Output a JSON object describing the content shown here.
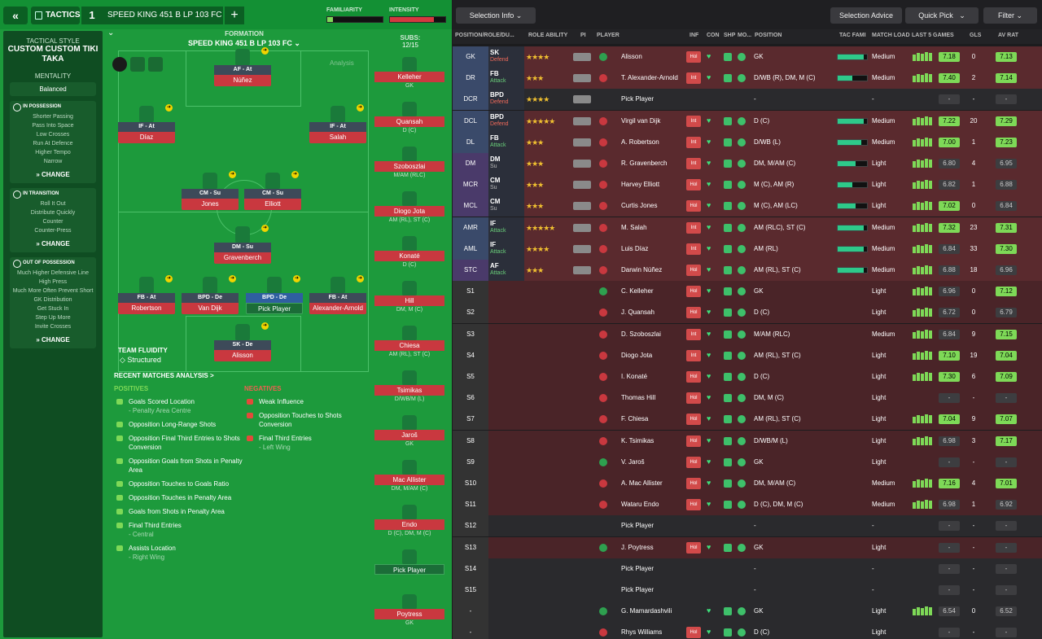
{
  "topbar": {
    "back": "«",
    "tactics": "TACTICS",
    "num": "1",
    "tactic_name": "SPEED KING 451 B LP 103 FC",
    "plus": "+",
    "familiarity": "FAMILIARITY",
    "intensity": "INTENSITY"
  },
  "sidebar": {
    "style_label": "TACTICAL STYLE",
    "style_name": "CUSTOM CUSTOM TIKI TAKA",
    "mentality_label": "MENTALITY",
    "mentality": "Balanced",
    "in_possession": {
      "title": "IN POSSESSION",
      "items": [
        "Shorter Passing",
        "Pass Into Space",
        "Low Crosses",
        "Run At Defence",
        "Higher Tempo",
        "Narrow"
      ],
      "change": "CHANGE"
    },
    "in_transition": {
      "title": "IN TRANSITION",
      "items": [
        "Roll It Out",
        "Distribute Quickly",
        "Counter",
        "Counter-Press"
      ],
      "change": "CHANGE"
    },
    "out_possession": {
      "title": "OUT OF POSSESSION",
      "items": [
        "Much Higher Defensive Line",
        "High Press",
        "Much More Often Prevent Short GK Distribution",
        "Get Stuck In",
        "Step Up More",
        "Invite Crosses"
      ],
      "change": "CHANGE"
    }
  },
  "formation": {
    "label": "FORMATION",
    "name": "SPEED KING 451 B LP 103 FC",
    "analysis": "Analysis",
    "subs_label": "SUBS:",
    "subs_count": "12/15",
    "players": [
      {
        "role": "AF - At",
        "name": "Núñez"
      },
      {
        "role": "IF - At",
        "name": "Díaz"
      },
      {
        "role": "IF - At",
        "name": "Salah"
      },
      {
        "role": "CM - Su",
        "name": "Jones"
      },
      {
        "role": "CM - Su",
        "name": "Elliott"
      },
      {
        "role": "DM - Su",
        "name": "Gravenberch"
      },
      {
        "role": "FB - At",
        "name": "Robertson"
      },
      {
        "role": "BPD - De",
        "name": "Van Dijk"
      },
      {
        "role": "BPD - De",
        "name": "Pick Player"
      },
      {
        "role": "FB - At",
        "name": "Alexander-Arnold"
      },
      {
        "role": "SK - De",
        "name": "Alisson"
      }
    ],
    "fluidity_label": "TEAM FLUIDITY",
    "fluidity": "Structured"
  },
  "subs": [
    {
      "name": "Kelleher",
      "pos": "GK"
    },
    {
      "name": "Quansah",
      "pos": "D (C)"
    },
    {
      "name": "Szoboszlai",
      "pos": "M/AM (RLC)"
    },
    {
      "name": "Diogo Jota",
      "pos": "AM (RL), ST (C)"
    },
    {
      "name": "Konaté",
      "pos": "D (C)"
    },
    {
      "name": "Hill",
      "pos": "DM, M (C)"
    },
    {
      "name": "Chiesa",
      "pos": "AM (RL), ST (C)"
    },
    {
      "name": "Tsimikas",
      "pos": "D/WB/M (L)"
    },
    {
      "name": "Jaroš",
      "pos": "GK"
    },
    {
      "name": "Mac Allister",
      "pos": "DM, M/AM (C)"
    },
    {
      "name": "Endo",
      "pos": "D (C), DM, M (C)"
    },
    {
      "name": "Pick Player",
      "pos": ""
    },
    {
      "name": "Poytress",
      "pos": "GK"
    }
  ],
  "analysis": {
    "title": "RECENT MATCHES ANALYSIS >",
    "positives_label": "POSITIVES",
    "negatives_label": "NEGATIVES",
    "positives": [
      {
        "t": "Goals Scored Location",
        "s": "- Penalty Area Centre"
      },
      {
        "t": "Opposition Long-Range Shots",
        "s": ""
      },
      {
        "t": "Opposition Final Third Entries to Shots Conversion",
        "s": ""
      },
      {
        "t": "Opposition Goals from Shots in Penalty Area",
        "s": ""
      },
      {
        "t": "Opposition Touches to Goals Ratio",
        "s": ""
      },
      {
        "t": "Opposition Touches in Penalty Area",
        "s": ""
      },
      {
        "t": "Goals from Shots in Penalty Area",
        "s": ""
      },
      {
        "t": "Final Third Entries",
        "s": "- Central"
      },
      {
        "t": "Assists Location",
        "s": "- Right Wing"
      }
    ],
    "negatives": [
      {
        "t": "Weak Influence",
        "s": ""
      },
      {
        "t": "Opposition Touches to Shots Conversion",
        "s": ""
      },
      {
        "t": "Final Third Entries",
        "s": "- Left Wing"
      }
    ]
  },
  "right_toolbar": {
    "selection_info": "Selection Info",
    "selection_advice": "Selection Advice",
    "quick_pick": "Quick Pick",
    "filter": "Filter"
  },
  "columns": [
    "POSITION/ROLE/DU...",
    "ROLE ABILITY",
    "PI",
    "PLAYER",
    "INF",
    "CON",
    "SHP",
    "MO...",
    "POSITION",
    "TAC FAMI",
    "MATCH LOAD",
    "LAST 5 GAMES",
    "GLS",
    "AV RAT"
  ],
  "rows": [
    {
      "p": "GK",
      "r": "SK",
      "d": "Defend",
      "stars": "★★★★",
      "name": "Alisson",
      "inf": "Hol",
      "pos": "GK",
      "tac": 0.9,
      "load": "Medium",
      "rat": "7.18",
      "gls": "0",
      "av": "7.13"
    },
    {
      "p": "DR",
      "r": "FB",
      "d": "Attack",
      "stars": "★★★",
      "name": "T. Alexander-Arnold",
      "inf": "Int",
      "pos": "D/WB (R), DM, M (C)",
      "tac": 0.5,
      "load": "Medium",
      "rat": "7.40",
      "gls": "2",
      "av": "7.14"
    },
    {
      "p": "DCR",
      "r": "BPD",
      "d": "Defend",
      "stars": "★★★★",
      "name": "Pick Player",
      "inf": "",
      "pos": "-",
      "tac": 0,
      "load": "-",
      "rat": "-",
      "gls": "-",
      "av": "-"
    },
    {
      "p": "DCL",
      "r": "BPD",
      "d": "Defend",
      "stars": "★★★★★",
      "name": "Virgil van Dijk",
      "inf": "Int",
      "pos": "D (C)",
      "tac": 0.9,
      "load": "Medium",
      "rat": "7.22",
      "gls": "20",
      "av": "7.29"
    },
    {
      "p": "DL",
      "r": "FB",
      "d": "Attack",
      "stars": "★★★",
      "name": "A. Robertson",
      "inf": "Int",
      "pos": "D/WB (L)",
      "tac": 0.8,
      "load": "Medium",
      "rat": "7.00",
      "gls": "1",
      "av": "7.23"
    },
    {
      "p": "DM",
      "r": "DM",
      "d": "Su",
      "stars": "★★★",
      "name": "R. Gravenberch",
      "inf": "Int",
      "pos": "DM, M/AM (C)",
      "tac": 0.6,
      "load": "Light",
      "rat": "6.80",
      "gls": "4",
      "av": "6.95"
    },
    {
      "p": "MCR",
      "r": "CM",
      "d": "Su",
      "stars": "★★★",
      "name": "Harvey Elliott",
      "inf": "Hol",
      "pos": "M (C), AM (R)",
      "tac": 0.5,
      "load": "Light",
      "rat": "6.82",
      "gls": "1",
      "av": "6.88"
    },
    {
      "p": "MCL",
      "r": "CM",
      "d": "Su",
      "stars": "★★★",
      "name": "Curtis Jones",
      "inf": "Hol",
      "pos": "M (C), AM (LC)",
      "tac": 0.6,
      "load": "Light",
      "rat": "7.02",
      "gls": "0",
      "av": "6.84"
    },
    {
      "p": "AMR",
      "r": "IF",
      "d": "Attack",
      "stars": "★★★★★",
      "name": "M. Salah",
      "inf": "Int",
      "pos": "AM (RLC), ST (C)",
      "tac": 0.9,
      "load": "Medium",
      "rat": "7.32",
      "gls": "23",
      "av": "7.31"
    },
    {
      "p": "AML",
      "r": "IF",
      "d": "Attack",
      "stars": "★★★★",
      "name": "Luis Díaz",
      "inf": "Int",
      "pos": "AM (RL)",
      "tac": 0.9,
      "load": "Medium",
      "rat": "6.84",
      "gls": "33",
      "av": "7.30"
    },
    {
      "p": "STC",
      "r": "AF",
      "d": "Attack",
      "stars": "★★★",
      "name": "Darwin Núñez",
      "inf": "Hol",
      "pos": "AM (RL), ST (C)",
      "tac": 0.9,
      "load": "Medium",
      "rat": "6.88",
      "gls": "18",
      "av": "6.96"
    },
    {
      "p": "S1",
      "r": "",
      "d": "",
      "stars": "",
      "name": "C. Kelleher",
      "inf": "Hol",
      "pos": "GK",
      "tac": 0,
      "load": "Light",
      "rat": "6.96",
      "gls": "0",
      "av": "7.12"
    },
    {
      "p": "S2",
      "r": "",
      "d": "",
      "stars": "",
      "name": "J. Quansah",
      "inf": "Hol",
      "pos": "D (C)",
      "tac": 0,
      "load": "Light",
      "rat": "6.72",
      "gls": "0",
      "av": "6.79"
    },
    {
      "p": "S3",
      "r": "",
      "d": "",
      "stars": "",
      "name": "D. Szoboszlai",
      "inf": "Int",
      "pos": "M/AM (RLC)",
      "tac": 0,
      "load": "Medium",
      "rat": "6.84",
      "gls": "9",
      "av": "7.15"
    },
    {
      "p": "S4",
      "r": "",
      "d": "",
      "stars": "",
      "name": "Diogo Jota",
      "inf": "Int",
      "pos": "AM (RL), ST (C)",
      "tac": 0,
      "load": "Light",
      "rat": "7.10",
      "gls": "19",
      "av": "7.04"
    },
    {
      "p": "S5",
      "r": "",
      "d": "",
      "stars": "",
      "name": "I. Konaté",
      "inf": "Hol",
      "pos": "D (C)",
      "tac": 0,
      "load": "Light",
      "rat": "7.30",
      "gls": "6",
      "av": "7.09"
    },
    {
      "p": "S6",
      "r": "",
      "d": "",
      "stars": "",
      "name": "Thomas Hill",
      "inf": "Hol",
      "pos": "DM, M (C)",
      "tac": 0,
      "load": "Light",
      "rat": "-",
      "gls": "-",
      "av": "-"
    },
    {
      "p": "S7",
      "r": "",
      "d": "",
      "stars": "",
      "name": "F. Chiesa",
      "inf": "Hol",
      "pos": "AM (RL), ST (C)",
      "tac": 0,
      "load": "Light",
      "rat": "7.04",
      "gls": "9",
      "av": "7.07"
    },
    {
      "p": "S8",
      "r": "",
      "d": "",
      "stars": "",
      "name": "K. Tsimikas",
      "inf": "Hol",
      "pos": "D/WB/M (L)",
      "tac": 0,
      "load": "Light",
      "rat": "6.98",
      "gls": "3",
      "av": "7.17"
    },
    {
      "p": "S9",
      "r": "",
      "d": "",
      "stars": "",
      "name": "V. Jaroš",
      "inf": "Hol",
      "pos": "GK",
      "tac": 0,
      "load": "Light",
      "rat": "-",
      "gls": "-",
      "av": "-"
    },
    {
      "p": "S10",
      "r": "",
      "d": "",
      "stars": "",
      "name": "A. Mac Allister",
      "inf": "Hol",
      "pos": "DM, M/AM (C)",
      "tac": 0,
      "load": "Medium",
      "rat": "7.16",
      "gls": "4",
      "av": "7.01"
    },
    {
      "p": "S11",
      "r": "",
      "d": "",
      "stars": "",
      "name": "Wataru Endo",
      "inf": "Hol",
      "pos": "D (C), DM, M (C)",
      "tac": 0,
      "load": "Medium",
      "rat": "6.98",
      "gls": "1",
      "av": "6.92"
    },
    {
      "p": "S12",
      "r": "",
      "d": "",
      "stars": "",
      "name": "Pick Player",
      "inf": "",
      "pos": "-",
      "tac": 0,
      "load": "-",
      "rat": "-",
      "gls": "-",
      "av": "-"
    },
    {
      "p": "S13",
      "r": "",
      "d": "",
      "stars": "",
      "name": "J. Poytress",
      "inf": "Hol",
      "pos": "GK",
      "tac": 0,
      "load": "Light",
      "rat": "-",
      "gls": "-",
      "av": "-"
    },
    {
      "p": "S14",
      "r": "",
      "d": "",
      "stars": "",
      "name": "Pick Player",
      "inf": "",
      "pos": "-",
      "tac": 0,
      "load": "-",
      "rat": "-",
      "gls": "-",
      "av": "-"
    },
    {
      "p": "S15",
      "r": "",
      "d": "",
      "stars": "",
      "name": "Pick Player",
      "inf": "",
      "pos": "-",
      "tac": 0,
      "load": "-",
      "rat": "-",
      "gls": "-",
      "av": "-"
    },
    {
      "p": "-",
      "r": "",
      "d": "",
      "stars": "",
      "name": "G. Mamardashvili",
      "inf": "",
      "pos": "GK",
      "tac": 0,
      "load": "Light",
      "rat": "6.54",
      "gls": "0",
      "av": "6.52"
    },
    {
      "p": "-",
      "r": "",
      "d": "",
      "stars": "",
      "name": "Rhys Williams",
      "inf": "Hol",
      "pos": "D (C)",
      "tac": 0,
      "load": "Light",
      "rat": "-",
      "gls": "-",
      "av": "-"
    }
  ]
}
